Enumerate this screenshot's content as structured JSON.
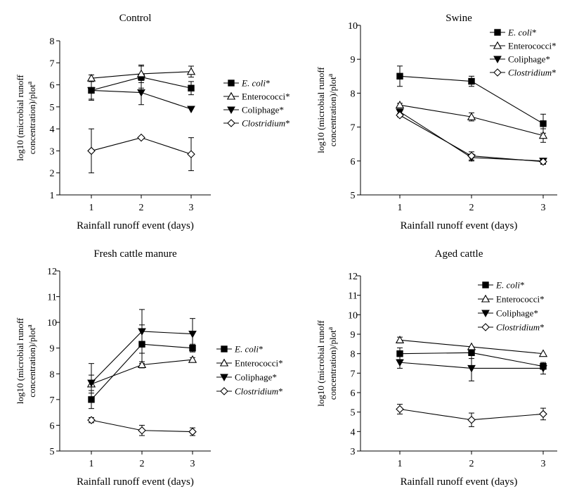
{
  "chart_data": [
    {
      "id": "control",
      "type": "line",
      "title": "Control",
      "xlabel": "Rainfall runoff event (days)",
      "ylabel": {
        "line1": "log10 (microbial runoff",
        "line2": "concentration)/plot",
        "sup": "a"
      },
      "x": [
        1,
        2,
        3
      ],
      "xticks": [
        "1",
        "2",
        "3"
      ],
      "ylim": [
        1,
        8
      ],
      "yticks": [
        "1",
        "2",
        "3",
        "4",
        "5",
        "6",
        "7",
        "8"
      ],
      "legend_position": "right-middle",
      "series": [
        {
          "key": "ecoli",
          "name": "E. coli",
          "suffix": "*",
          "italic": true,
          "marker": "square",
          "values": [
            5.75,
            6.35,
            5.85
          ],
          "errors": [
            0.45,
            0.5,
            0.3
          ]
        },
        {
          "key": "entero",
          "name": "Enterococci",
          "suffix": "*",
          "italic": false,
          "marker": "triangle-up-open",
          "values": [
            6.3,
            6.5,
            6.6
          ],
          "errors": [
            0.15,
            0.4,
            0.25
          ]
        },
        {
          "key": "colip",
          "name": "Coliphage",
          "suffix": "*",
          "italic": false,
          "marker": "triangle-down",
          "values": [
            5.75,
            5.65,
            4.9
          ],
          "errors": [
            0.4,
            0.55,
            0
          ]
        },
        {
          "key": "clos",
          "name": "Clostridium",
          "suffix": "*",
          "italic": true,
          "marker": "diamond-open",
          "values": [
            3.0,
            3.6,
            2.85
          ],
          "errors": [
            1.0,
            0,
            0.75
          ]
        }
      ]
    },
    {
      "id": "swine",
      "type": "line",
      "title": "Swine",
      "xlabel": "Rainfall runoff event (days)",
      "ylabel": {
        "line1": "log10 (microbial runoff",
        "line2": "concentration)/plot",
        "sup": "a"
      },
      "x": [
        1,
        2,
        3
      ],
      "xticks": [
        "1",
        "2",
        "3"
      ],
      "ylim": [
        5,
        10
      ],
      "yticks": [
        "5",
        "6",
        "7",
        "8",
        "9",
        "10"
      ],
      "legend_position": "top-right",
      "series": [
        {
          "key": "ecoli",
          "name": "E. coli",
          "suffix": "*",
          "italic": true,
          "marker": "square",
          "values": [
            8.5,
            8.35,
            7.1
          ],
          "errors": [
            0.3,
            0.15,
            0.28
          ]
        },
        {
          "key": "entero",
          "name": "Enterococci",
          "suffix": "*",
          "italic": false,
          "marker": "triangle-up-open",
          "values": [
            7.65,
            7.3,
            6.75
          ],
          "errors": [
            0.05,
            0.12,
            0.2
          ]
        },
        {
          "key": "colip",
          "name": "Coliphage",
          "suffix": "*",
          "italic": false,
          "marker": "triangle-down",
          "values": [
            7.45,
            6.1,
            6.0
          ],
          "errors": [
            0.05,
            0.1,
            0.08
          ]
        },
        {
          "key": "clos",
          "name": "Clostridium",
          "suffix": "*",
          "italic": true,
          "marker": "diamond-open",
          "values": [
            7.35,
            6.15,
            5.98
          ],
          "errors": [
            0.05,
            0.12,
            0.08
          ]
        }
      ]
    },
    {
      "id": "fresh",
      "type": "line",
      "title": "Fresh cattle manure",
      "xlabel": "Rainfall runoff event (days)",
      "ylabel": {
        "line1": "log10 (microbial runoff",
        "line2": "concentration)/plot",
        "sup": "a"
      },
      "x": [
        1,
        2,
        3
      ],
      "xticks": [
        "1",
        "2",
        "3"
      ],
      "ylim": [
        5,
        12
      ],
      "yticks": [
        "5",
        "6",
        "7",
        "8",
        "9",
        "10",
        "11",
        "12"
      ],
      "legend_position": "right-middle",
      "series": [
        {
          "key": "ecoli",
          "name": "E. coli",
          "suffix": "*",
          "italic": true,
          "marker": "square",
          "values": [
            7.0,
            9.15,
            9.0
          ],
          "errors": [
            0.35,
            0.75,
            0.15
          ]
        },
        {
          "key": "entero",
          "name": "Enterococci",
          "suffix": "*",
          "italic": false,
          "marker": "triangle-up-open",
          "values": [
            7.6,
            8.35,
            8.55
          ],
          "errors": [
            0.35,
            0.12,
            0.08
          ]
        },
        {
          "key": "colip",
          "name": "Coliphage",
          "suffix": "*",
          "italic": false,
          "marker": "triangle-down",
          "values": [
            7.65,
            9.65,
            9.55
          ],
          "errors": [
            0.75,
            0.85,
            0.6
          ]
        },
        {
          "key": "clos",
          "name": "Clostridium",
          "suffix": "*",
          "italic": true,
          "marker": "diamond-open",
          "values": [
            6.2,
            5.8,
            5.75
          ],
          "errors": [
            0.1,
            0.2,
            0.15
          ]
        }
      ]
    },
    {
      "id": "aged",
      "type": "line",
      "title": "Aged cattle",
      "xlabel": "Rainfall runoff event (days)",
      "ylabel": {
        "line1": "log10 (microbial runoff",
        "line2": "concentration)/plot",
        "sup": "a"
      },
      "x": [
        1,
        2,
        3
      ],
      "xticks": [
        "1",
        "2",
        "3"
      ],
      "ylim": [
        3,
        12
      ],
      "yticks": [
        "3",
        "4",
        "5",
        "6",
        "7",
        "8",
        "9",
        "10",
        "11",
        "12"
      ],
      "legend_position": "top-right",
      "series": [
        {
          "key": "ecoli",
          "name": "E. coli",
          "suffix": "*",
          "italic": true,
          "marker": "square",
          "values": [
            8.0,
            8.05,
            7.35
          ],
          "errors": [
            0.3,
            0.3,
            0.15
          ]
        },
        {
          "key": "entero",
          "name": "Enterococci",
          "suffix": "*",
          "italic": false,
          "marker": "triangle-up-open",
          "values": [
            8.7,
            8.35,
            8.0
          ],
          "errors": [
            0.15,
            0,
            0
          ]
        },
        {
          "key": "colip",
          "name": "Coliphage",
          "suffix": "*",
          "italic": false,
          "marker": "triangle-down",
          "values": [
            7.55,
            7.25,
            7.25
          ],
          "errors": [
            0.3,
            0.65,
            0.3
          ]
        },
        {
          "key": "clos",
          "name": "Clostridium",
          "suffix": "*",
          "italic": true,
          "marker": "diamond-open",
          "values": [
            5.15,
            4.6,
            4.9
          ],
          "errors": [
            0.25,
            0.35,
            0.3
          ]
        }
      ]
    }
  ]
}
